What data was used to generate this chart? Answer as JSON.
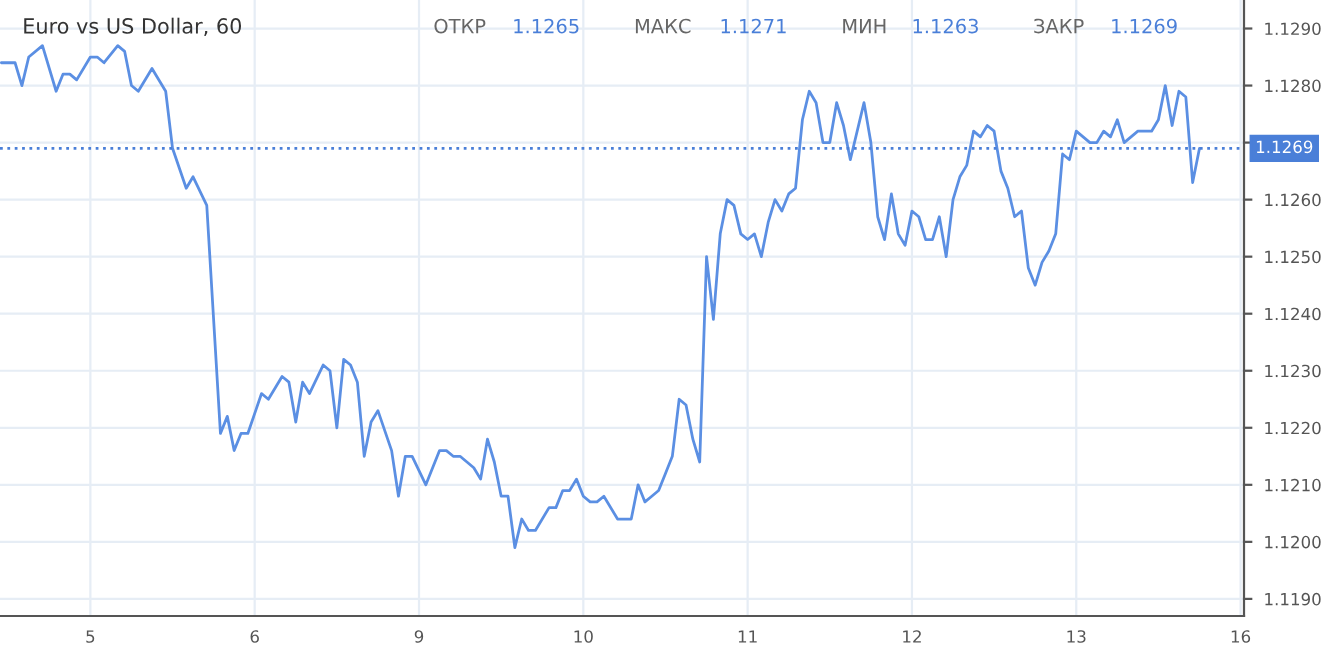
{
  "chart_data": {
    "type": "line",
    "title": "Euro vs US Dollar, 60",
    "annotations": [
      "ОТКР 1.1265",
      "МАКС 1.1271",
      "МИН 1.1263",
      "ЗАКР 1.1269"
    ],
    "categories": [
      null,
      null,
      null,
      null,
      null,
      null,
      null,
      null,
      null,
      null,
      null,
      null,
      null,
      "5",
      null,
      null,
      null,
      null,
      null,
      null,
      null,
      null,
      null,
      null,
      null,
      null,
      null,
      null,
      null,
      null,
      null,
      null,
      null,
      null,
      null,
      null,
      null,
      "6",
      null,
      null,
      null,
      null,
      null,
      null,
      null,
      null,
      null,
      null,
      null,
      null,
      null,
      null,
      null,
      null,
      null,
      null,
      null,
      null,
      null,
      null,
      null,
      "9",
      null,
      null,
      null,
      null,
      null,
      null,
      null,
      null,
      null,
      null,
      null,
      null,
      null,
      null,
      null,
      null,
      null,
      null,
      null,
      null,
      null,
      null,
      null,
      "10",
      null,
      null,
      null,
      null,
      null,
      null,
      null,
      null,
      null,
      null,
      null,
      null,
      null,
      null,
      null,
      null,
      null,
      null,
      null,
      null,
      null,
      null,
      null,
      "11",
      null,
      null,
      null,
      null,
      null,
      null,
      null,
      null,
      null,
      null,
      null,
      null,
      null,
      null,
      null,
      null,
      null,
      null,
      null,
      null,
      null,
      null,
      null,
      "12",
      null,
      null,
      null,
      null,
      null,
      null,
      null,
      null,
      null,
      null,
      null,
      null,
      null,
      null,
      null,
      null,
      null,
      null,
      null,
      null,
      null,
      null,
      null,
      "13",
      null,
      null,
      null,
      null,
      null,
      null,
      null,
      null,
      null,
      null,
      null,
      null,
      null,
      null,
      null,
      null,
      null,
      null,
      null,
      null,
      null,
      null,
      null,
      "16"
    ],
    "series": [
      {
        "color": "#5b8fe3",
        "values": [
          1.1284,
          null,
          1.1284,
          1.128,
          1.1285,
          null,
          1.1287,
          null,
          1.1279,
          1.1282,
          1.1282,
          1.1281,
          null,
          1.1285,
          1.1285,
          1.1284,
          null,
          1.1287,
          1.1286,
          1.128,
          1.1279,
          null,
          1.1283,
          null,
          1.1279,
          1.1269,
          null,
          1.1262,
          1.1264,
          null,
          1.1259,
          null,
          1.1219,
          1.1222,
          1.1216,
          1.1219,
          1.1219,
          null,
          1.1226,
          1.1225,
          null,
          1.1229,
          1.1228,
          1.1221,
          1.1228,
          1.1226,
          null,
          1.1231,
          1.123,
          1.122,
          1.1232,
          1.1231,
          1.1228,
          1.1215,
          1.1221,
          1.1223,
          null,
          1.1216,
          1.1208,
          1.1215,
          1.1215,
          null,
          1.121,
          null,
          1.1216,
          1.1216,
          1.1215,
          1.1215,
          null,
          1.1213,
          1.1211,
          1.1218,
          1.1214,
          1.1208,
          1.1208,
          1.1199,
          1.1204,
          1.1202,
          1.1202,
          null,
          1.1206,
          1.1206,
          1.1209,
          1.1209,
          1.1211,
          1.1208,
          1.1207,
          1.1207,
          1.1208,
          null,
          1.1204,
          null,
          1.1204,
          1.121,
          1.1207,
          1.1208,
          1.1209,
          1.1212,
          1.1215,
          1.1225,
          1.1224,
          1.1218,
          1.1214,
          1.125,
          1.1239,
          1.1254,
          1.126,
          1.1259,
          1.1254,
          1.1253,
          1.1254,
          1.125,
          1.1256,
          1.126,
          1.1258,
          1.1261,
          1.1262,
          1.1274,
          1.1279,
          1.1277,
          1.127,
          1.127,
          1.1277,
          1.1273,
          1.1267,
          null,
          1.1277,
          1.127,
          1.1257,
          1.1253,
          1.1261,
          1.1254,
          1.1252,
          1.1258,
          1.1257,
          1.1253,
          1.1253,
          1.1257,
          1.125,
          1.126,
          1.1264,
          1.1266,
          1.1272,
          1.1271,
          1.1273,
          1.1272,
          1.1265,
          1.1262,
          1.1257,
          1.1258,
          1.1248,
          1.1245,
          1.1249,
          1.1251,
          1.1254,
          1.1268,
          1.1267,
          1.1272,
          1.1271,
          1.127,
          1.127,
          1.1272,
          1.1271,
          1.1274,
          1.127,
          null,
          1.1272,
          1.1272,
          1.1272,
          1.1274,
          1.128,
          1.1273,
          1.1279,
          1.1278,
          1.1263,
          1.1269,
          null,
          null,
          null,
          null,
          null,
          null
        ]
      }
    ],
    "ylim": [
      1.1187,
      1.1295
    ],
    "yticks": [
      {
        "value": 1.119,
        "label": "1.1190"
      },
      {
        "value": 1.12,
        "label": "1.1200"
      },
      {
        "value": 1.121,
        "label": "1.1210"
      },
      {
        "value": 1.122,
        "label": "1.1220"
      },
      {
        "value": 1.123,
        "label": "1.1230"
      },
      {
        "value": 1.124,
        "label": "1.1240"
      },
      {
        "value": 1.125,
        "label": "1.1250"
      },
      {
        "value": 1.126,
        "label": "1.1260"
      },
      {
        "value": 1.127,
        "label": null
      },
      {
        "value": 1.128,
        "label": "1.1280"
      },
      {
        "value": 1.129,
        "label": "1.1290"
      }
    ],
    "ref_lines": [
      {
        "axis": "y",
        "value": 1.1269,
        "label": "1.1269",
        "color": "#4a7fd8",
        "line_style": "dotted"
      }
    ],
    "grid": true,
    "legend": false,
    "line_style": "solid",
    "marker": "none"
  }
}
